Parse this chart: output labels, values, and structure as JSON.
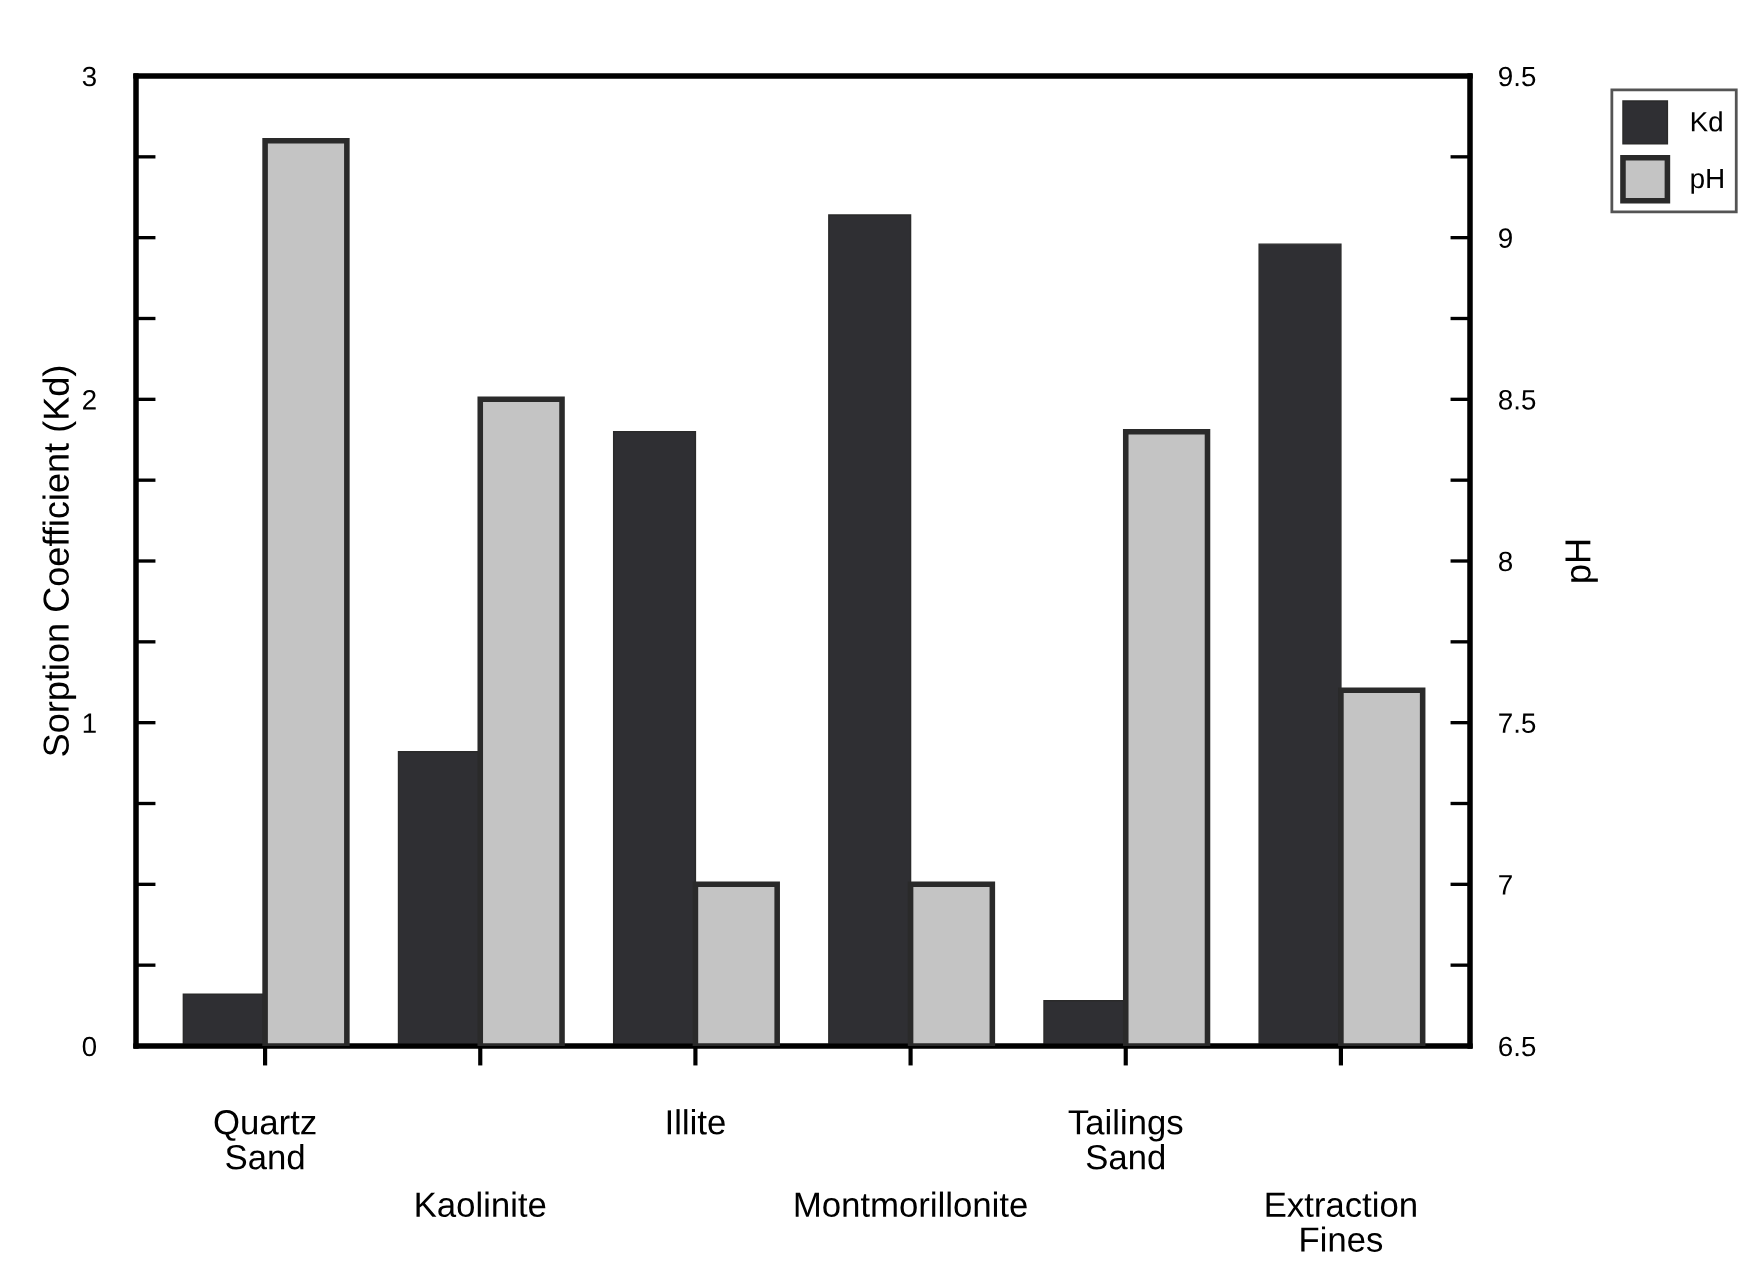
{
  "chart_data": {
    "type": "bar",
    "categories": [
      "Quartz\nSand",
      "Kaolinite",
      "Illite",
      "Montmorillonite",
      "Tailings\nSand",
      "Extraction\nFines"
    ],
    "series": [
      {
        "name": "Kd",
        "color": "#2f2f33",
        "values": [
          0.16,
          0.91,
          1.9,
          2.57,
          0.14,
          2.48
        ]
      },
      {
        "name": "pH",
        "color": "#c4c4c4",
        "axis": "y2",
        "values": [
          9.3,
          8.5,
          7.0,
          7.0,
          8.4,
          7.6
        ]
      }
    ],
    "ylabel": "Sorption Coefficient (Kd)",
    "y2label": "pH",
    "ylim": [
      0,
      3
    ],
    "yticks": [
      0,
      {
        "value": 0.25,
        "label": null
      },
      {
        "value": 0.5,
        "label": null
      },
      {
        "value": 0.75,
        "label": null
      },
      1,
      {
        "value": 1.25,
        "label": null
      },
      {
        "value": 1.5,
        "label": null
      },
      {
        "value": 1.75,
        "label": null
      },
      2,
      {
        "value": 2.25,
        "label": null
      },
      {
        "value": 2.5,
        "label": null
      },
      {
        "value": 2.75,
        "label": null
      },
      3
    ],
    "y2lim": [
      6.5,
      9.5
    ],
    "y2ticks": [
      6.5,
      {
        "value": 6.75,
        "label": null
      },
      7,
      {
        "value": 7.25,
        "label": null
      },
      7.5,
      {
        "value": 7.75,
        "label": null
      },
      8,
      {
        "value": 8.25,
        "label": null
      },
      8.5,
      {
        "value": 8.75,
        "label": null
      },
      9,
      {
        "value": 9.25,
        "label": null
      },
      9.5
    ],
    "legend": "top right",
    "grid": false
  }
}
